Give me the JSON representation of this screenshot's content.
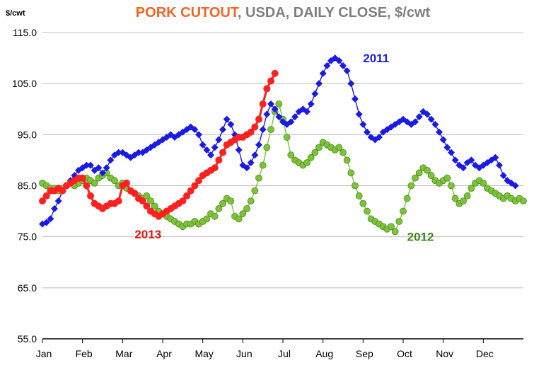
{
  "chart_data": {
    "type": "line",
    "title_highlight": "PORK CUTOUT",
    "title_rest": ", USDA, DAILY CLOSE, $/cwt",
    "ylabel": "$/cwt",
    "ylim": [
      55,
      115
    ],
    "yticks": [
      "115.0",
      "105.0",
      "95.0",
      "85.0",
      "75.0",
      "65.0",
      "55.0"
    ],
    "ytick_values": [
      115,
      105,
      95,
      85,
      75,
      65,
      55
    ],
    "xlim": [
      0,
      12
    ],
    "categories": [
      "Jan",
      "Feb",
      "Mar",
      "Apr",
      "May",
      "Jun",
      "Jul",
      "Aug",
      "Sep",
      "Oct",
      "Nov",
      "Dec"
    ],
    "grid": "horizontal",
    "colors": {
      "title_highlight": "#F26522",
      "title_rest": "#7F7F7F"
    },
    "series": [
      {
        "name": "2011",
        "color": "#1A1AE6",
        "marker": "diamond",
        "points": [
          [
            0.0,
            77.5
          ],
          [
            0.1,
            77.8
          ],
          [
            0.2,
            78.5
          ],
          [
            0.3,
            80.5
          ],
          [
            0.4,
            82.0
          ],
          [
            0.5,
            84.0
          ],
          [
            0.6,
            85.0
          ],
          [
            0.7,
            86.0
          ],
          [
            0.8,
            87.0
          ],
          [
            0.9,
            88.0
          ],
          [
            1.0,
            88.5
          ],
          [
            1.1,
            89.0
          ],
          [
            1.2,
            89.0
          ],
          [
            1.3,
            88.0
          ],
          [
            1.4,
            88.5
          ],
          [
            1.5,
            87.5
          ],
          [
            1.6,
            88.5
          ],
          [
            1.7,
            90.0
          ],
          [
            1.8,
            91.0
          ],
          [
            1.9,
            91.5
          ],
          [
            2.0,
            91.5
          ],
          [
            2.1,
            91.0
          ],
          [
            2.2,
            90.5
          ],
          [
            2.3,
            91.0
          ],
          [
            2.4,
            91.5
          ],
          [
            2.5,
            91.5
          ],
          [
            2.6,
            92.0
          ],
          [
            2.7,
            92.5
          ],
          [
            2.8,
            93.0
          ],
          [
            2.9,
            93.5
          ],
          [
            3.0,
            94.0
          ],
          [
            3.1,
            94.5
          ],
          [
            3.2,
            95.0
          ],
          [
            3.3,
            94.5
          ],
          [
            3.4,
            95.0
          ],
          [
            3.5,
            95.5
          ],
          [
            3.6,
            96.0
          ],
          [
            3.7,
            96.5
          ],
          [
            3.8,
            96.0
          ],
          [
            3.9,
            95.0
          ],
          [
            4.0,
            93.0
          ],
          [
            4.1,
            92.0
          ],
          [
            4.2,
            91.0
          ],
          [
            4.3,
            92.5
          ],
          [
            4.4,
            94.0
          ],
          [
            4.5,
            96.0
          ],
          [
            4.6,
            98.0
          ],
          [
            4.7,
            97.0
          ],
          [
            4.8,
            95.0
          ],
          [
            4.9,
            92.0
          ],
          [
            5.0,
            89.0
          ],
          [
            5.1,
            88.5
          ],
          [
            5.2,
            89.5
          ],
          [
            5.3,
            91.0
          ],
          [
            5.4,
            93.0
          ],
          [
            5.5,
            96.0
          ],
          [
            5.6,
            99.0
          ],
          [
            5.7,
            101.0
          ],
          [
            5.8,
            100.0
          ],
          [
            5.9,
            98.5
          ],
          [
            6.0,
            97.5
          ],
          [
            6.1,
            97.0
          ],
          [
            6.2,
            97.5
          ],
          [
            6.3,
            98.5
          ],
          [
            6.4,
            99.5
          ],
          [
            6.5,
            100.0
          ],
          [
            6.6,
            99.5
          ],
          [
            6.7,
            101.0
          ],
          [
            6.8,
            103.0
          ],
          [
            6.9,
            105.0
          ],
          [
            7.0,
            107.0
          ],
          [
            7.1,
            108.5
          ],
          [
            7.2,
            109.5
          ],
          [
            7.3,
            110.0
          ],
          [
            7.4,
            109.5
          ],
          [
            7.5,
            108.5
          ],
          [
            7.6,
            107.5
          ],
          [
            7.7,
            105.0
          ],
          [
            7.8,
            102.0
          ],
          [
            7.9,
            99.0
          ],
          [
            8.0,
            97.0
          ],
          [
            8.1,
            95.5
          ],
          [
            8.2,
            94.5
          ],
          [
            8.3,
            94.0
          ],
          [
            8.4,
            94.5
          ],
          [
            8.5,
            95.5
          ],
          [
            8.6,
            96.0
          ],
          [
            8.7,
            96.5
          ],
          [
            8.8,
            97.0
          ],
          [
            8.9,
            97.5
          ],
          [
            9.0,
            98.0
          ],
          [
            9.1,
            97.5
          ],
          [
            9.2,
            97.0
          ],
          [
            9.3,
            97.5
          ],
          [
            9.4,
            98.5
          ],
          [
            9.5,
            99.5
          ],
          [
            9.6,
            99.0
          ],
          [
            9.7,
            98.0
          ],
          [
            9.8,
            97.0
          ],
          [
            9.9,
            95.5
          ],
          [
            10.0,
            94.0
          ],
          [
            10.1,
            92.5
          ],
          [
            10.2,
            91.5
          ],
          [
            10.3,
            90.0
          ],
          [
            10.4,
            89.0
          ],
          [
            10.5,
            88.5
          ],
          [
            10.6,
            89.5
          ],
          [
            10.7,
            90.0
          ],
          [
            10.8,
            89.0
          ],
          [
            10.9,
            88.5
          ],
          [
            11.0,
            89.0
          ],
          [
            11.1,
            89.5
          ],
          [
            11.2,
            90.0
          ],
          [
            11.3,
            90.5
          ],
          [
            11.4,
            89.0
          ],
          [
            11.5,
            87.0
          ],
          [
            11.6,
            86.0
          ],
          [
            11.7,
            85.5
          ],
          [
            11.8,
            85.0
          ]
        ]
      },
      {
        "name": "2012",
        "color": "#7DC33A",
        "marker": "circle",
        "points": [
          [
            0.0,
            85.5
          ],
          [
            0.1,
            85.0
          ],
          [
            0.2,
            84.5
          ],
          [
            0.3,
            84.5
          ],
          [
            0.4,
            84.0
          ],
          [
            0.5,
            84.5
          ],
          [
            0.6,
            85.0
          ],
          [
            0.7,
            85.5
          ],
          [
            0.8,
            85.0
          ],
          [
            0.9,
            85.5
          ],
          [
            1.0,
            86.0
          ],
          [
            1.1,
            86.5
          ],
          [
            1.2,
            86.0
          ],
          [
            1.3,
            85.5
          ],
          [
            1.4,
            86.5
          ],
          [
            1.5,
            87.0
          ],
          [
            1.6,
            87.5
          ],
          [
            1.7,
            86.5
          ],
          [
            1.8,
            86.0
          ],
          [
            1.9,
            85.0
          ],
          [
            2.0,
            85.5
          ],
          [
            2.1,
            84.5
          ],
          [
            2.2,
            84.0
          ],
          [
            2.3,
            83.5
          ],
          [
            2.4,
            83.0
          ],
          [
            2.5,
            82.5
          ],
          [
            2.6,
            83.0
          ],
          [
            2.7,
            82.0
          ],
          [
            2.8,
            81.0
          ],
          [
            2.9,
            80.0
          ],
          [
            3.0,
            79.5
          ],
          [
            3.1,
            79.0
          ],
          [
            3.2,
            78.5
          ],
          [
            3.3,
            78.0
          ],
          [
            3.4,
            77.5
          ],
          [
            3.5,
            77.0
          ],
          [
            3.6,
            77.5
          ],
          [
            3.7,
            77.5
          ],
          [
            3.8,
            78.0
          ],
          [
            3.9,
            77.5
          ],
          [
            4.0,
            78.0
          ],
          [
            4.1,
            78.5
          ],
          [
            4.2,
            79.5
          ],
          [
            4.3,
            79.0
          ],
          [
            4.4,
            80.5
          ],
          [
            4.5,
            81.5
          ],
          [
            4.6,
            82.5
          ],
          [
            4.7,
            82.0
          ],
          [
            4.8,
            79.0
          ],
          [
            4.9,
            78.5
          ],
          [
            5.0,
            79.5
          ],
          [
            5.1,
            80.5
          ],
          [
            5.2,
            82.0
          ],
          [
            5.3,
            84.0
          ],
          [
            5.4,
            86.5
          ],
          [
            5.5,
            89.0
          ],
          [
            5.6,
            92.5
          ],
          [
            5.7,
            96.0
          ],
          [
            5.8,
            99.5
          ],
          [
            5.9,
            101.0
          ],
          [
            6.0,
            98.0
          ],
          [
            6.1,
            94.5
          ],
          [
            6.2,
            91.0
          ],
          [
            6.3,
            90.0
          ],
          [
            6.4,
            89.5
          ],
          [
            6.5,
            89.0
          ],
          [
            6.6,
            89.5
          ],
          [
            6.7,
            90.5
          ],
          [
            6.8,
            91.5
          ],
          [
            6.9,
            92.5
          ],
          [
            7.0,
            93.5
          ],
          [
            7.1,
            93.0
          ],
          [
            7.2,
            92.5
          ],
          [
            7.3,
            92.0
          ],
          [
            7.4,
            92.5
          ],
          [
            7.5,
            91.5
          ],
          [
            7.6,
            90.0
          ],
          [
            7.7,
            87.5
          ],
          [
            7.8,
            85.0
          ],
          [
            7.9,
            83.0
          ],
          [
            8.0,
            81.5
          ],
          [
            8.1,
            80.0
          ],
          [
            8.2,
            78.5
          ],
          [
            8.3,
            78.0
          ],
          [
            8.4,
            77.5
          ],
          [
            8.5,
            77.0
          ],
          [
            8.6,
            76.5
          ],
          [
            8.7,
            77.0
          ],
          [
            8.8,
            76.0
          ],
          [
            8.9,
            78.0
          ],
          [
            9.0,
            80.0
          ],
          [
            9.1,
            82.5
          ],
          [
            9.2,
            85.0
          ],
          [
            9.3,
            86.5
          ],
          [
            9.4,
            87.5
          ],
          [
            9.5,
            88.5
          ],
          [
            9.6,
            88.0
          ],
          [
            9.7,
            87.0
          ],
          [
            9.8,
            86.0
          ],
          [
            9.9,
            85.5
          ],
          [
            10.0,
            86.0
          ],
          [
            10.1,
            86.5
          ],
          [
            10.2,
            85.0
          ],
          [
            10.3,
            82.5
          ],
          [
            10.4,
            81.5
          ],
          [
            10.5,
            82.0
          ],
          [
            10.6,
            83.0
          ],
          [
            10.7,
            84.5
          ],
          [
            10.8,
            85.5
          ],
          [
            10.9,
            86.0
          ],
          [
            11.0,
            85.5
          ],
          [
            11.1,
            84.5
          ],
          [
            11.2,
            84.0
          ],
          [
            11.3,
            83.5
          ],
          [
            11.4,
            83.0
          ],
          [
            11.5,
            82.5
          ],
          [
            11.6,
            83.0
          ],
          [
            11.7,
            82.5
          ],
          [
            11.8,
            82.0
          ],
          [
            11.9,
            82.5
          ],
          [
            12.0,
            82.0
          ]
        ]
      },
      {
        "name": "2013",
        "color": "#FF2020",
        "marker": "circle",
        "points": [
          [
            0.0,
            82.0
          ],
          [
            0.1,
            83.0
          ],
          [
            0.2,
            84.0
          ],
          [
            0.3,
            84.0
          ],
          [
            0.4,
            84.5
          ],
          [
            0.5,
            84.0
          ],
          [
            0.6,
            85.0
          ],
          [
            0.7,
            85.5
          ],
          [
            0.8,
            86.0
          ],
          [
            0.9,
            86.5
          ],
          [
            1.0,
            86.5
          ],
          [
            1.1,
            85.0
          ],
          [
            1.2,
            83.0
          ],
          [
            1.3,
            81.5
          ],
          [
            1.4,
            81.0
          ],
          [
            1.5,
            80.5
          ],
          [
            1.6,
            81.0
          ],
          [
            1.7,
            81.5
          ],
          [
            1.8,
            81.5
          ],
          [
            1.9,
            82.0
          ],
          [
            2.0,
            85.0
          ],
          [
            2.1,
            85.5
          ],
          [
            2.2,
            84.0
          ],
          [
            2.3,
            83.5
          ],
          [
            2.4,
            82.5
          ],
          [
            2.5,
            82.0
          ],
          [
            2.6,
            81.0
          ],
          [
            2.7,
            80.0
          ],
          [
            2.8,
            79.5
          ],
          [
            2.9,
            79.0
          ],
          [
            3.0,
            79.5
          ],
          [
            3.1,
            80.0
          ],
          [
            3.2,
            80.5
          ],
          [
            3.3,
            81.0
          ],
          [
            3.4,
            81.5
          ],
          [
            3.5,
            82.0
          ],
          [
            3.6,
            83.0
          ],
          [
            3.7,
            84.0
          ],
          [
            3.8,
            85.0
          ],
          [
            3.9,
            86.0
          ],
          [
            4.0,
            87.0
          ],
          [
            4.1,
            87.5
          ],
          [
            4.2,
            88.0
          ],
          [
            4.3,
            88.5
          ],
          [
            4.4,
            90.0
          ],
          [
            4.5,
            91.5
          ],
          [
            4.6,
            93.0
          ],
          [
            4.7,
            93.5
          ],
          [
            4.8,
            94.0
          ],
          [
            4.9,
            94.5
          ],
          [
            5.0,
            94.5
          ],
          [
            5.1,
            95.0
          ],
          [
            5.2,
            95.5
          ],
          [
            5.3,
            96.5
          ],
          [
            5.4,
            98.0
          ],
          [
            5.5,
            101.0
          ],
          [
            5.6,
            104.0
          ],
          [
            5.7,
            105.5
          ],
          [
            5.8,
            107.0
          ]
        ]
      }
    ],
    "annotations": [
      {
        "text": "2011",
        "x": 8.0,
        "y": 110.0,
        "color": "#1A1AE6"
      },
      {
        "text": "2012",
        "x": 9.1,
        "y": 75.0,
        "color": "#3A8A1A"
      },
      {
        "text": "2013",
        "x": 2.3,
        "y": 75.5,
        "color": "#E8150F"
      }
    ]
  }
}
